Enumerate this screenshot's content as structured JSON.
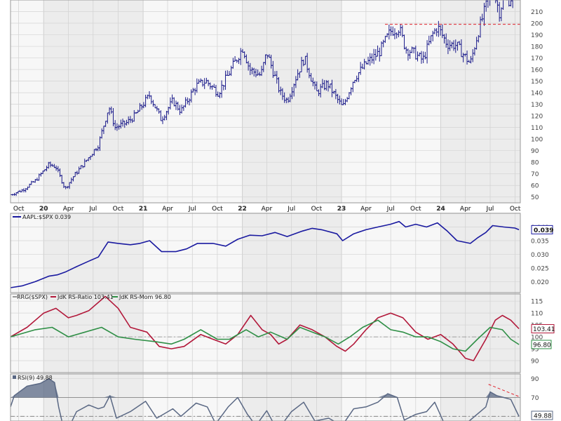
{
  "chart_data": [
    {
      "type": "ohlc",
      "panel": "price",
      "symbol": "AAPL",
      "y_axis": {
        "min": 45,
        "max": 220,
        "ticks": [
          50,
          60,
          70,
          80,
          90,
          100,
          110,
          120,
          130,
          140,
          150,
          160,
          170,
          180,
          190,
          200,
          210
        ]
      },
      "x_axis": {
        "start": "2019-09-01",
        "end": "2024-10-20",
        "ticks": [
          {
            "label": "Oct",
            "date": "2019-10-01"
          },
          {
            "label": "20",
            "date": "2020-01-01",
            "bold": true
          },
          {
            "label": "Apr",
            "date": "2020-04-01"
          },
          {
            "label": "Jul",
            "date": "2020-07-01"
          },
          {
            "label": "Oct",
            "date": "2020-10-01"
          },
          {
            "label": "21",
            "date": "2021-01-01",
            "bold": true
          },
          {
            "label": "Apr",
            "date": "2021-04-01"
          },
          {
            "label": "Jul",
            "date": "2021-07-01"
          },
          {
            "label": "Oct",
            "date": "2021-10-01"
          },
          {
            "label": "22",
            "date": "2022-01-01",
            "bold": true
          },
          {
            "label": "Apr",
            "date": "2022-04-01"
          },
          {
            "label": "Jul",
            "date": "2022-07-01"
          },
          {
            "label": "Oct",
            "date": "2022-10-01"
          },
          {
            "label": "23",
            "date": "2023-01-01",
            "bold": true
          },
          {
            "label": "Apr",
            "date": "2023-04-01"
          },
          {
            "label": "Jul",
            "date": "2023-07-01"
          },
          {
            "label": "Oct",
            "date": "2023-10-01"
          },
          {
            "label": "24",
            "date": "2024-01-01",
            "bold": true
          },
          {
            "label": "Apr",
            "date": "2024-04-01"
          },
          {
            "label": "Jul",
            "date": "2024-07-01"
          },
          {
            "label": "Oct",
            "date": "2024-10-01"
          }
        ]
      },
      "close_path": [
        [
          "2019-09-01",
          52
        ],
        [
          "2019-10-15",
          56
        ],
        [
          "2019-12-01",
          64
        ],
        [
          "2020-01-20",
          78
        ],
        [
          "2020-02-15",
          76
        ],
        [
          "2020-03-20",
          57
        ],
        [
          "2020-04-20",
          68
        ],
        [
          "2020-06-01",
          80
        ],
        [
          "2020-07-20",
          95
        ],
        [
          "2020-08-28",
          128
        ],
        [
          "2020-09-20",
          110
        ],
        [
          "2020-11-01",
          114
        ],
        [
          "2020-12-01",
          120
        ],
        [
          "2021-01-25",
          138
        ],
        [
          "2021-03-08",
          117
        ],
        [
          "2021-04-20",
          133
        ],
        [
          "2021-05-20",
          124
        ],
        [
          "2021-07-15",
          146
        ],
        [
          "2021-08-20",
          150
        ],
        [
          "2021-10-05",
          140
        ],
        [
          "2021-11-20",
          160
        ],
        [
          "2022-01-03",
          179
        ],
        [
          "2022-01-28",
          160
        ],
        [
          "2022-03-10",
          155
        ],
        [
          "2022-04-01",
          175
        ],
        [
          "2022-05-20",
          140
        ],
        [
          "2022-06-15",
          133
        ],
        [
          "2022-07-20",
          155
        ],
        [
          "2022-08-17",
          170
        ],
        [
          "2022-09-30",
          140
        ],
        [
          "2022-11-10",
          148
        ],
        [
          "2023-01-05",
          127
        ],
        [
          "2023-02-15",
          152
        ],
        [
          "2023-04-01",
          165
        ],
        [
          "2023-05-20",
          175
        ],
        [
          "2023-06-30",
          193
        ],
        [
          "2023-08-01",
          196
        ],
        [
          "2023-08-25",
          178
        ],
        [
          "2023-09-20",
          175
        ],
        [
          "2023-10-27",
          168
        ],
        [
          "2023-12-01",
          190
        ],
        [
          "2023-12-20",
          197
        ],
        [
          "2024-01-25",
          182
        ],
        [
          "2024-02-28",
          181
        ],
        [
          "2024-04-19",
          165
        ],
        [
          "2024-05-15",
          190
        ],
        [
          "2024-06-15",
          214
        ],
        [
          "2024-07-10",
          230
        ],
        [
          "2024-08-05",
          209
        ],
        [
          "2024-08-20",
          225
        ],
        [
          "2024-09-10",
          220
        ],
        [
          "2024-09-30",
          228
        ]
      ],
      "resistance_line": {
        "value": 199,
        "from": "2023-06-10",
        "to": "2024-10-20",
        "color": "#e0202a",
        "style": "dashed"
      }
    },
    {
      "type": "line",
      "panel": "relative_strength",
      "title": "AAPL:$SPX 0.039",
      "legend_prefix": "AAPL:$SPX",
      "last_value": "0.039",
      "y_axis": {
        "min": 0.016,
        "max": 0.045,
        "ticks": [
          0.02,
          0.025,
          0.03,
          0.035,
          0.04
        ],
        "labels": [
          "0.020",
          "0.025",
          "0.030",
          "0.035",
          "0.040"
        ]
      },
      "color": "#1a1aa0",
      "points": [
        [
          "2019-09-01",
          0.0178
        ],
        [
          "2019-10-15",
          0.0185
        ],
        [
          "2019-12-01",
          0.02
        ],
        [
          "2020-01-20",
          0.022
        ],
        [
          "2020-02-20",
          0.0225
        ],
        [
          "2020-03-20",
          0.0235
        ],
        [
          "2020-05-01",
          0.0255
        ],
        [
          "2020-06-15",
          0.0275
        ],
        [
          "2020-07-20",
          0.029
        ],
        [
          "2020-08-25",
          0.0345
        ],
        [
          "2020-10-01",
          0.034
        ],
        [
          "2020-11-15",
          0.0335
        ],
        [
          "2020-12-20",
          0.034
        ],
        [
          "2021-01-25",
          0.035
        ],
        [
          "2021-03-10",
          0.031
        ],
        [
          "2021-05-01",
          0.031
        ],
        [
          "2021-06-10",
          0.032
        ],
        [
          "2021-07-20",
          0.034
        ],
        [
          "2021-09-15",
          0.034
        ],
        [
          "2021-11-01",
          0.033
        ],
        [
          "2021-12-15",
          0.0355
        ],
        [
          "2022-01-28",
          0.037
        ],
        [
          "2022-03-15",
          0.0368
        ],
        [
          "2022-05-01",
          0.038
        ],
        [
          "2022-06-15",
          0.0365
        ],
        [
          "2022-08-10",
          0.0385
        ],
        [
          "2022-09-15",
          0.0395
        ],
        [
          "2022-10-20",
          0.039
        ],
        [
          "2022-12-15",
          0.0375
        ],
        [
          "2023-01-05",
          0.035
        ],
        [
          "2023-02-15",
          0.0375
        ],
        [
          "2023-04-01",
          0.039
        ],
        [
          "2023-05-15",
          0.04
        ],
        [
          "2023-06-30",
          0.041
        ],
        [
          "2023-08-01",
          0.042
        ],
        [
          "2023-08-25",
          0.04
        ],
        [
          "2023-10-01",
          0.041
        ],
        [
          "2023-11-10",
          0.04
        ],
        [
          "2023-12-20",
          0.0415
        ],
        [
          "2024-01-25",
          0.0385
        ],
        [
          "2024-03-01",
          0.035
        ],
        [
          "2024-04-19",
          0.034
        ],
        [
          "2024-05-15",
          0.036
        ],
        [
          "2024-06-15",
          0.038
        ],
        [
          "2024-07-10",
          0.0405
        ],
        [
          "2024-08-20",
          0.04
        ],
        [
          "2024-09-30",
          0.0396
        ],
        [
          "2024-10-15",
          0.039
        ]
      ]
    },
    {
      "type": "line",
      "panel": "rrg",
      "title": "RRG($SPX) JdK RS-Ratio 103.41 JdK RS-Mom 96.80",
      "legend": {
        "prefix": "RRG($SPX)",
        "ratio_label": "JdK RS-Ratio 103.41",
        "mom_label": "JdK RS-Mom 96.80"
      },
      "y_axis": {
        "min": 85,
        "max": 118,
        "ticks": [
          90,
          95,
          100,
          105,
          110,
          115
        ],
        "labels": [
          "90",
          "95",
          "100",
          "105",
          "110",
          "115"
        ]
      },
      "reference": 100,
      "last_values": {
        "ratio": "103.41",
        "mom": "96.80"
      },
      "series": [
        {
          "name": "JdK RS-Ratio",
          "color": "#b2183a",
          "points": [
            [
              "2019-09-01",
              100
            ],
            [
              "2019-11-01",
              104
            ],
            [
              "2020-01-01",
              110
            ],
            [
              "2020-02-15",
              112
            ],
            [
              "2020-04-01",
              108
            ],
            [
              "2020-05-01",
              109
            ],
            [
              "2020-06-15",
              111
            ],
            [
              "2020-08-15",
              117
            ],
            [
              "2020-10-01",
              112
            ],
            [
              "2020-11-15",
              104
            ],
            [
              "2021-01-15",
              102
            ],
            [
              "2021-03-01",
              96
            ],
            [
              "2021-04-15",
              95
            ],
            [
              "2021-06-01",
              96
            ],
            [
              "2021-08-01",
              101
            ],
            [
              "2021-09-15",
              99
            ],
            [
              "2021-11-01",
              97
            ],
            [
              "2021-12-15",
              101
            ],
            [
              "2022-02-01",
              109
            ],
            [
              "2022-03-15",
              103
            ],
            [
              "2022-04-15",
              101
            ],
            [
              "2022-05-15",
              97
            ],
            [
              "2022-06-15",
              99
            ],
            [
              "2022-08-01",
              105
            ],
            [
              "2022-09-15",
              103
            ],
            [
              "2022-11-01",
              100
            ],
            [
              "2022-12-15",
              96
            ],
            [
              "2023-01-15",
              94
            ],
            [
              "2023-02-15",
              97
            ],
            [
              "2023-04-01",
              103
            ],
            [
              "2023-05-15",
              108
            ],
            [
              "2023-07-01",
              110
            ],
            [
              "2023-08-15",
              108
            ],
            [
              "2023-10-01",
              102
            ],
            [
              "2023-11-15",
              99
            ],
            [
              "2024-01-01",
              101
            ],
            [
              "2024-02-15",
              97
            ],
            [
              "2024-04-01",
              91
            ],
            [
              "2024-05-01",
              90
            ],
            [
              "2024-06-15",
              99
            ],
            [
              "2024-07-20",
              107
            ],
            [
              "2024-08-15",
              109
            ],
            [
              "2024-09-15",
              107
            ],
            [
              "2024-10-15",
              103.41
            ]
          ]
        },
        {
          "name": "JdK RS-Mom",
          "color": "#2f8f46",
          "points": [
            [
              "2019-09-01",
              100
            ],
            [
              "2019-12-01",
              103
            ],
            [
              "2020-02-01",
              104
            ],
            [
              "2020-04-01",
              100
            ],
            [
              "2020-06-01",
              102
            ],
            [
              "2020-08-01",
              104
            ],
            [
              "2020-10-01",
              100
            ],
            [
              "2020-12-01",
              99
            ],
            [
              "2021-02-15",
              98
            ],
            [
              "2021-04-15",
              97
            ],
            [
              "2021-06-01",
              99
            ],
            [
              "2021-08-01",
              103
            ],
            [
              "2021-10-01",
              99
            ],
            [
              "2021-11-15",
              99
            ],
            [
              "2022-01-15",
              103
            ],
            [
              "2022-03-01",
              100
            ],
            [
              "2022-04-15",
              102
            ],
            [
              "2022-06-15",
              99
            ],
            [
              "2022-08-01",
              104
            ],
            [
              "2022-09-15",
              102
            ],
            [
              "2022-11-01",
              100
            ],
            [
              "2022-12-20",
              97
            ],
            [
              "2023-02-01",
              100
            ],
            [
              "2023-03-20",
              104
            ],
            [
              "2023-05-15",
              107
            ],
            [
              "2023-07-01",
              103
            ],
            [
              "2023-08-15",
              102
            ],
            [
              "2023-10-01",
              100
            ],
            [
              "2023-11-15",
              100
            ],
            [
              "2024-01-01",
              98
            ],
            [
              "2024-02-15",
              95
            ],
            [
              "2024-04-01",
              94
            ],
            [
              "2024-05-15",
              99
            ],
            [
              "2024-07-01",
              104
            ],
            [
              "2024-08-15",
              103
            ],
            [
              "2024-09-15",
              99
            ],
            [
              "2024-10-15",
              96.8
            ]
          ]
        }
      ]
    },
    {
      "type": "area",
      "panel": "rsi",
      "title": "RSI(9) 49.88",
      "legend_prefix": "RSI(9)",
      "last_value": "49.88",
      "y_axis": {
        "min": 45,
        "max": 95,
        "ticks": [
          50,
          70,
          90
        ],
        "labels": [
          "50",
          "70",
          "90"
        ]
      },
      "levels": [
        30,
        50,
        70
      ],
      "color": "#5a6884",
      "points": [
        [
          "2019-09-01",
          60
        ],
        [
          "2019-09-15",
          72
        ],
        [
          "2019-11-01",
          82
        ],
        [
          "2019-12-20",
          85
        ],
        [
          "2020-01-20",
          90
        ],
        [
          "2020-02-10",
          86
        ],
        [
          "2020-02-25",
          60
        ],
        [
          "2020-03-20",
          30
        ],
        [
          "2020-05-01",
          55
        ],
        [
          "2020-06-15",
          62
        ],
        [
          "2020-07-20",
          58
        ],
        [
          "2020-08-10",
          60
        ],
        [
          "2020-09-01",
          72
        ],
        [
          "2020-09-25",
          48
        ],
        [
          "2020-11-15",
          55
        ],
        [
          "2021-01-10",
          66
        ],
        [
          "2021-02-20",
          48
        ],
        [
          "2021-04-20",
          58
        ],
        [
          "2021-05-20",
          50
        ],
        [
          "2021-07-15",
          64
        ],
        [
          "2021-08-25",
          60
        ],
        [
          "2021-09-25",
          42
        ],
        [
          "2021-11-10",
          60
        ],
        [
          "2021-12-15",
          70
        ],
        [
          "2022-01-20",
          52
        ],
        [
          "2022-02-20",
          40
        ],
        [
          "2022-04-01",
          56
        ],
        [
          "2022-05-10",
          35
        ],
        [
          "2022-07-01",
          55
        ],
        [
          "2022-08-15",
          65
        ],
        [
          "2022-09-25",
          45
        ],
        [
          "2022-11-15",
          48
        ],
        [
          "2023-01-03",
          40
        ],
        [
          "2023-02-15",
          58
        ],
        [
          "2023-04-01",
          60
        ],
        [
          "2023-05-15",
          65
        ],
        [
          "2023-06-20",
          74
        ],
        [
          "2023-07-25",
          70
        ],
        [
          "2023-08-20",
          46
        ],
        [
          "2023-10-01",
          52
        ],
        [
          "2023-11-10",
          55
        ],
        [
          "2023-12-10",
          65
        ],
        [
          "2024-01-10",
          45
        ],
        [
          "2024-02-20",
          42
        ],
        [
          "2024-04-15",
          45
        ],
        [
          "2024-06-15",
          60
        ],
        [
          "2024-07-01",
          76
        ],
        [
          "2024-07-25",
          72
        ],
        [
          "2024-08-20",
          70
        ],
        [
          "2024-09-15",
          68
        ],
        [
          "2024-10-15",
          49.88
        ]
      ],
      "trendline": {
        "from": [
          "2024-06-25",
          84
        ],
        "to": [
          "2024-10-15",
          71
        ],
        "color": "#e0202a",
        "style": "dashed"
      }
    }
  ]
}
